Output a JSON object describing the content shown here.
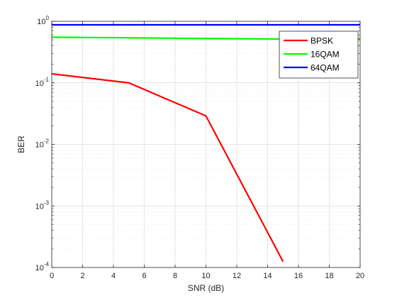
{
  "chart_data": {
    "type": "line",
    "xlabel": "SNR (dB)",
    "ylabel": "BER",
    "x_axis": {
      "min": 0,
      "max": 20,
      "ticks": [
        0,
        2,
        4,
        6,
        8,
        10,
        12,
        14,
        16,
        18,
        20
      ]
    },
    "y_axis": {
      "scale": "log",
      "min": 0.0001,
      "max": 1
    },
    "y_tick_labels": [
      {
        "value": 1,
        "base": "10",
        "exp": "0"
      },
      {
        "value": 0.1,
        "base": "10",
        "exp": "-1"
      },
      {
        "value": 0.01,
        "base": "10",
        "exp": "-2"
      },
      {
        "value": 0.001,
        "base": "10",
        "exp": "-3"
      },
      {
        "value": 0.0001,
        "base": "10",
        "exp": "-4"
      }
    ],
    "grid": true,
    "legend_position": "top-right",
    "series": [
      {
        "name": "BPSK",
        "color": "#ff0000",
        "x": [
          0,
          5,
          10,
          15
        ],
        "y": [
          0.14,
          0.1,
          0.029,
          0.000125
        ]
      },
      {
        "name": "16QAM",
        "color": "#00ff00",
        "x": [
          0,
          5,
          10,
          15,
          20
        ],
        "y": [
          0.55,
          0.54,
          0.525,
          0.515,
          0.52
        ]
      },
      {
        "name": "64QAM",
        "color": "#0000ff",
        "x": [
          0,
          5,
          10,
          15,
          20
        ],
        "y": [
          0.875,
          0.875,
          0.875,
          0.875,
          0.875
        ]
      }
    ]
  }
}
